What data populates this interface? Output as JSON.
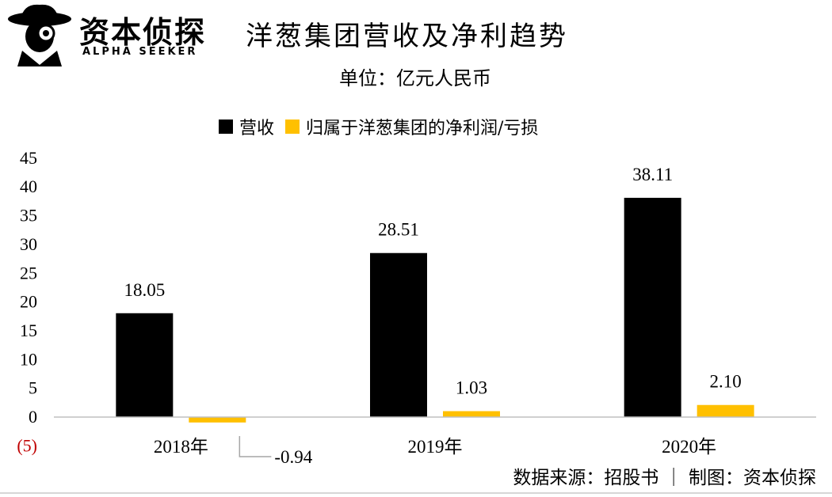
{
  "logo": {
    "name_cn": "资本侦探",
    "name_en": "ALPHA SEEKER"
  },
  "header": {
    "title": "洋葱集团营收及净利趋势",
    "unit": "单位：亿元人民币"
  },
  "legend": [
    {
      "label": "营收",
      "color": "#000000"
    },
    {
      "label": "归属于洋葱集团的净利润/亏损",
      "color": "#FFC000"
    }
  ],
  "chart_data": {
    "type": "bar",
    "categories": [
      "2018年",
      "2019年",
      "2020年"
    ],
    "series": [
      {
        "name": "营收",
        "color": "#000000",
        "values": [
          18.05,
          28.51,
          38.11
        ],
        "labels": [
          "18.05",
          "28.51",
          "38.11"
        ]
      },
      {
        "name": "归属于洋葱集团的净利润/亏损",
        "color": "#FFC000",
        "values": [
          -0.94,
          1.03,
          2.1
        ],
        "labels": [
          "-0.94",
          "1.03",
          "2.10"
        ]
      }
    ],
    "ylim": [
      -5,
      45
    ],
    "y_ticks": [
      45,
      40,
      35,
      30,
      25,
      20,
      15,
      10,
      5,
      0,
      -5
    ],
    "y_tick_labels": [
      "45",
      "40",
      "35",
      "30",
      "25",
      "20",
      "15",
      "10",
      "5",
      "0",
      "(5)"
    ],
    "negative_tick_color": "#C00000",
    "grid": false
  },
  "footer": {
    "source": "数据来源：招股书 ｜ 制图：资本侦探"
  }
}
